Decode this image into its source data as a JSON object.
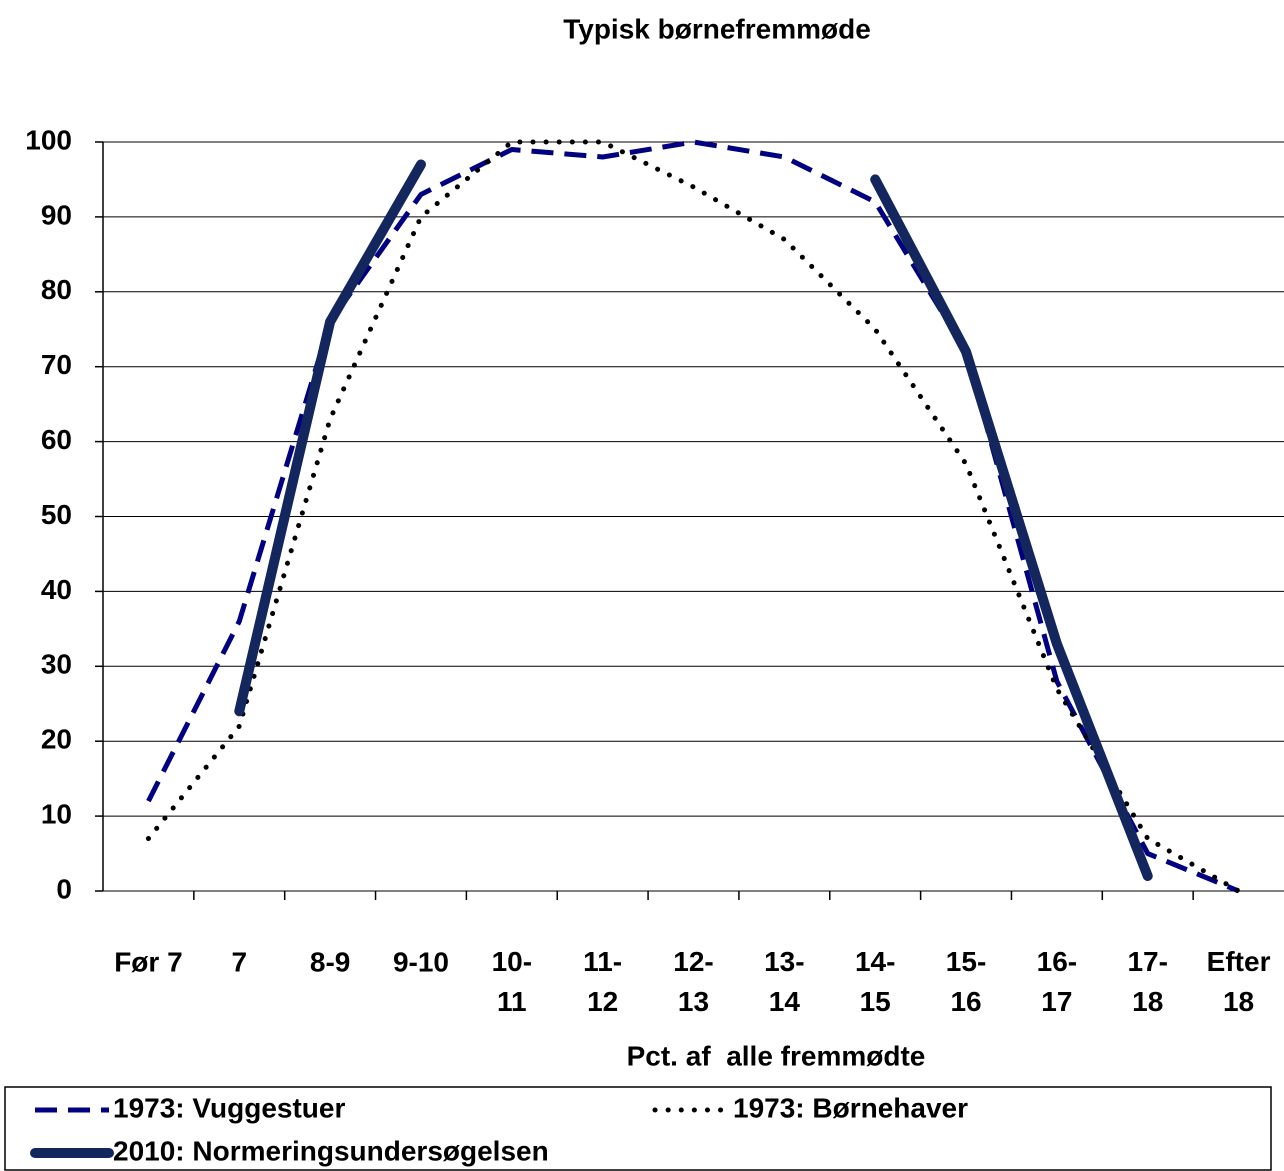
{
  "chart_data": {
    "type": "line",
    "title": "Typisk børnefremmøde",
    "x_label": "Pct. af  alle fremmødte",
    "categories": [
      "Før 7",
      "7",
      "8-9",
      "9-10",
      "10-\n11",
      "11-\n12",
      "12-\n13",
      "13-\n14",
      "14-\n15",
      "15-\n16",
      "16-\n17",
      "17-\n18",
      "Efter\n18"
    ],
    "series": [
      {
        "name": "1973: Vuggestuer",
        "color": "#000080",
        "dash": "dashed",
        "values": [
          12,
          36,
          76,
          93,
          99,
          98,
          100,
          98,
          92,
          72,
          28,
          5,
          0
        ]
      },
      {
        "name": "1973: Børnehaver",
        "color": "#000000",
        "dash": "dotted",
        "values": [
          7,
          22,
          63,
          90,
          100,
          100,
          94,
          87,
          75,
          57,
          27,
          7,
          0
        ]
      },
      {
        "name": "2010: Normeringsundersøgelsen",
        "color": "#13265e",
        "dash": "solid",
        "values": [
          null,
          24,
          76,
          97,
          null,
          null,
          null,
          null,
          95,
          72,
          33,
          2,
          null
        ]
      }
    ],
    "ylim": [
      0,
      100
    ],
    "yticks": [
      0,
      10,
      20,
      30,
      40,
      50,
      60,
      70,
      80,
      90,
      100
    ],
    "grid": true,
    "legend": "bottom"
  }
}
